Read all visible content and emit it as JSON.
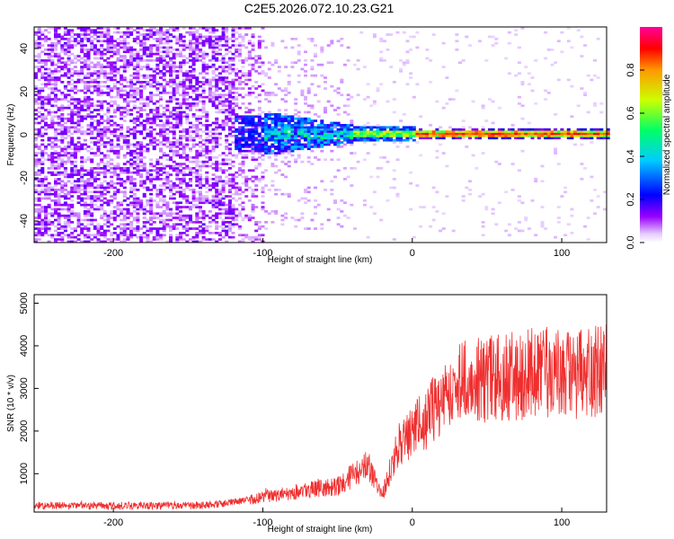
{
  "title": "C2E5.2026.072.10.23.G21",
  "chart_data": [
    {
      "type": "heatmap",
      "title": "C2E5.2026.072.10.23.G21",
      "xlabel": "Height of straight line (km)",
      "ylabel": "Frequency (Hz)",
      "xlim": [
        -253,
        130
      ],
      "ylim": [
        -50,
        50
      ],
      "x_ticks": [
        "-200",
        "-100",
        "0",
        "100"
      ],
      "y_ticks": [
        "-40",
        "-20",
        "0",
        "20",
        "40"
      ],
      "colorbar": {
        "label": "Normalized spectral amplitude",
        "range": [
          0,
          1
        ],
        "ticks": [
          "0.0",
          "0.2",
          "0.4",
          "0.6",
          "0.8"
        ]
      },
      "features": {
        "noise_region_x": [
          -253,
          -100
        ],
        "onset_x": -120,
        "carrier_frequency": 0,
        "carrier_peak_amplitude": 0.8
      }
    },
    {
      "type": "line",
      "xlabel": "Height of straight line (km)",
      "ylabel": "SNR (10 * v/v)",
      "xlim": [
        -253,
        130
      ],
      "ylim": [
        100,
        5200
      ],
      "x_ticks": [
        "-200",
        "-100",
        "0",
        "100"
      ],
      "y_ticks": [
        "1000",
        "2000",
        "3000",
        "4000",
        "5000"
      ],
      "color": "#ef2f2f",
      "series": [
        {
          "x": [
            -253,
            -200,
            -150,
            -125,
            -100,
            -75,
            -50,
            -30,
            -20,
            -10,
            0,
            10,
            20,
            30,
            50,
            70,
            90,
            110,
            130
          ],
          "values": [
            250,
            250,
            250,
            300,
            450,
            600,
            700,
            1200,
            500,
            1600,
            2000,
            2300,
            2800,
            3200,
            3200,
            3300,
            3400,
            3300,
            3500
          ]
        }
      ]
    }
  ]
}
